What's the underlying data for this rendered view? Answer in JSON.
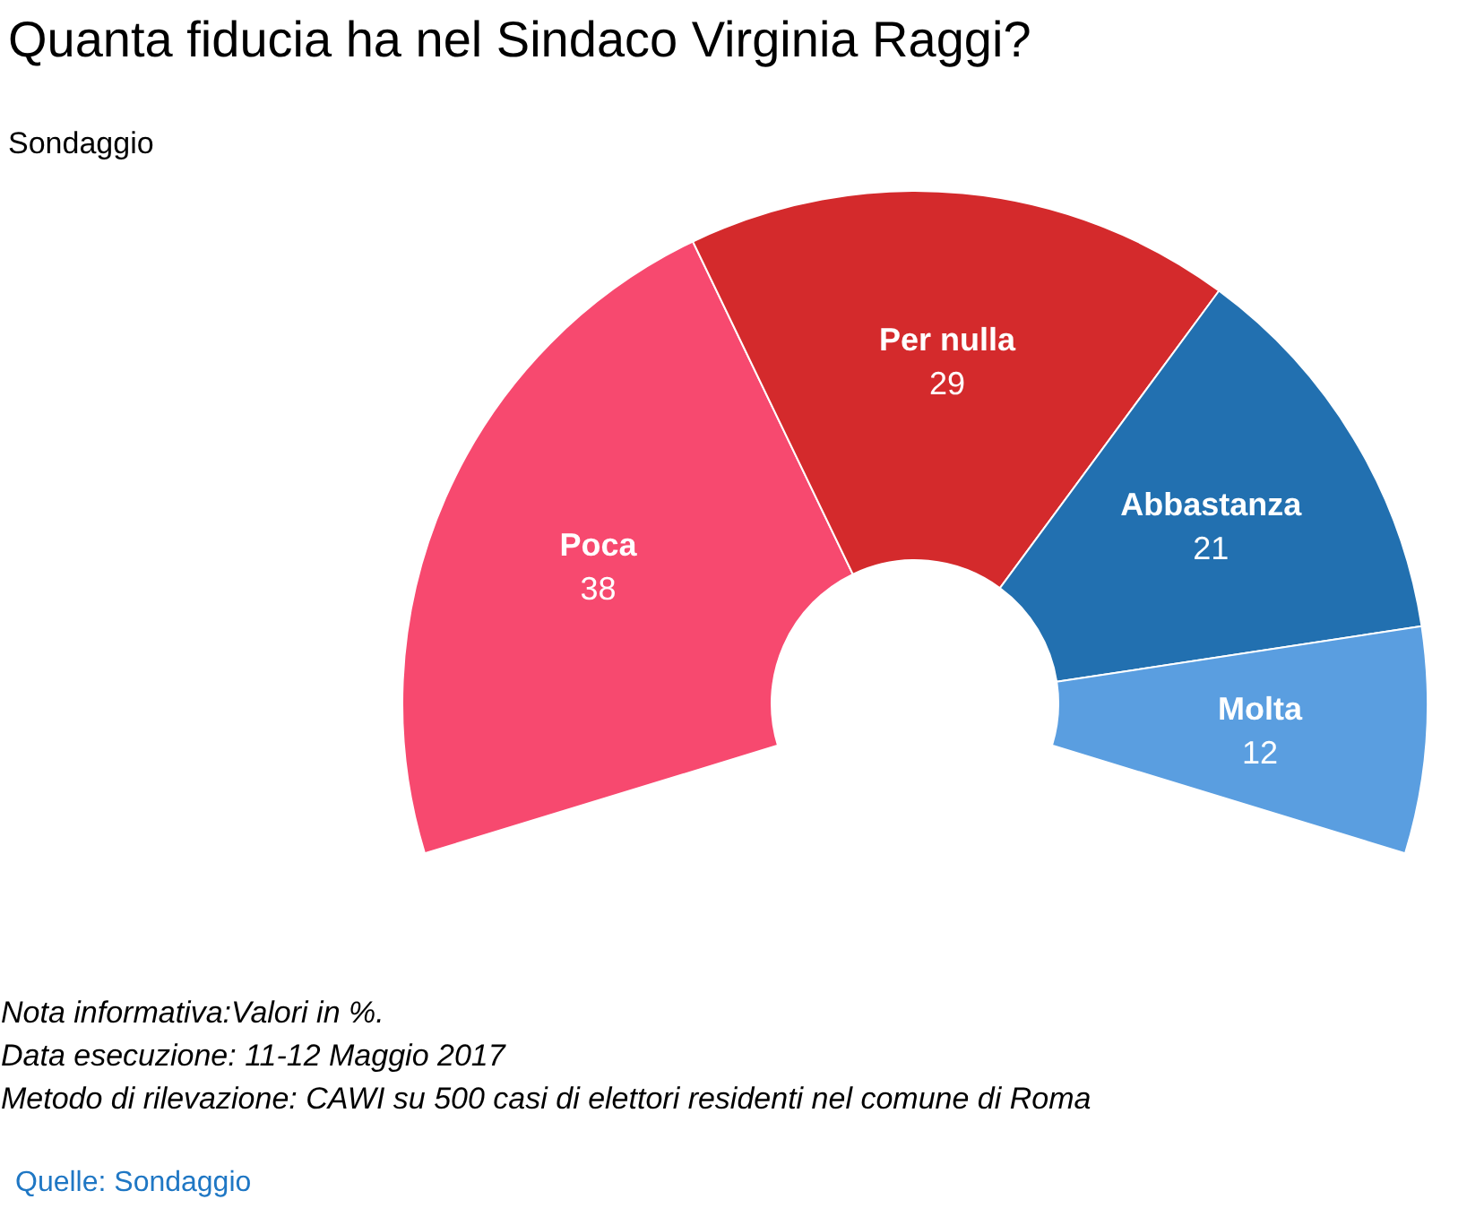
{
  "chart_data": {
    "type": "donut",
    "title": "Quanta fiducia ha nel Sindaco Virginia Raggi?",
    "subtitle": "Sondaggio",
    "categories": [
      "Poca",
      "Per nulla",
      "Abbastanza",
      "Molta"
    ],
    "values": [
      38,
      29,
      21,
      12
    ],
    "colors": [
      "#f7496f",
      "#d42a2c",
      "#2270b0",
      "#5a9ee0"
    ],
    "data_labels": true,
    "annotations": [
      "Nota informativa:Valori in %.",
      "Data esecuzione: 11-12 Maggio 2017",
      "Metodo di rilevazione: CAWI su 500 casi di elettori residenti nel comune di Roma",
      "Quelle: Sondaggio"
    ]
  }
}
